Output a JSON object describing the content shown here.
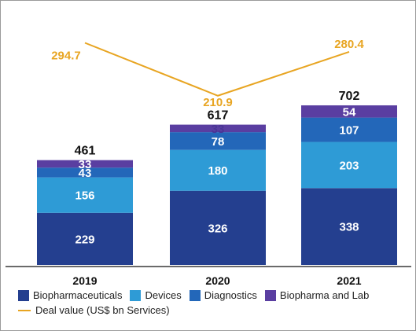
{
  "chart_data": {
    "type": "bar",
    "stacked": true,
    "categories": [
      "2019",
      "2020",
      "2021"
    ],
    "series": [
      {
        "name": "Biopharmaceuticals",
        "color": "#243f8f",
        "values": [
          229,
          326,
          338
        ]
      },
      {
        "name": "Devices",
        "color": "#2e9bd6",
        "values": [
          156,
          180,
          203
        ]
      },
      {
        "name": "Diagnostics",
        "color": "#2367b9",
        "values": [
          43,
          78,
          107
        ]
      },
      {
        "name": "Biopharma and Lab",
        "color": "#5a3ea1",
        "values": [
          33,
          33,
          54
        ]
      }
    ],
    "totals": [
      461,
      617,
      702
    ],
    "line_series": {
      "name": "Deal value (US$ bn Services)",
      "color": "#e8a522",
      "values": [
        294.7,
        210.9,
        280.4
      ]
    },
    "segment_label_color": "#ffffff",
    "total_label_color": "#111111",
    "top_segment_label_color": "#4a3596",
    "legend_position": "bottom-left",
    "grid": false
  }
}
